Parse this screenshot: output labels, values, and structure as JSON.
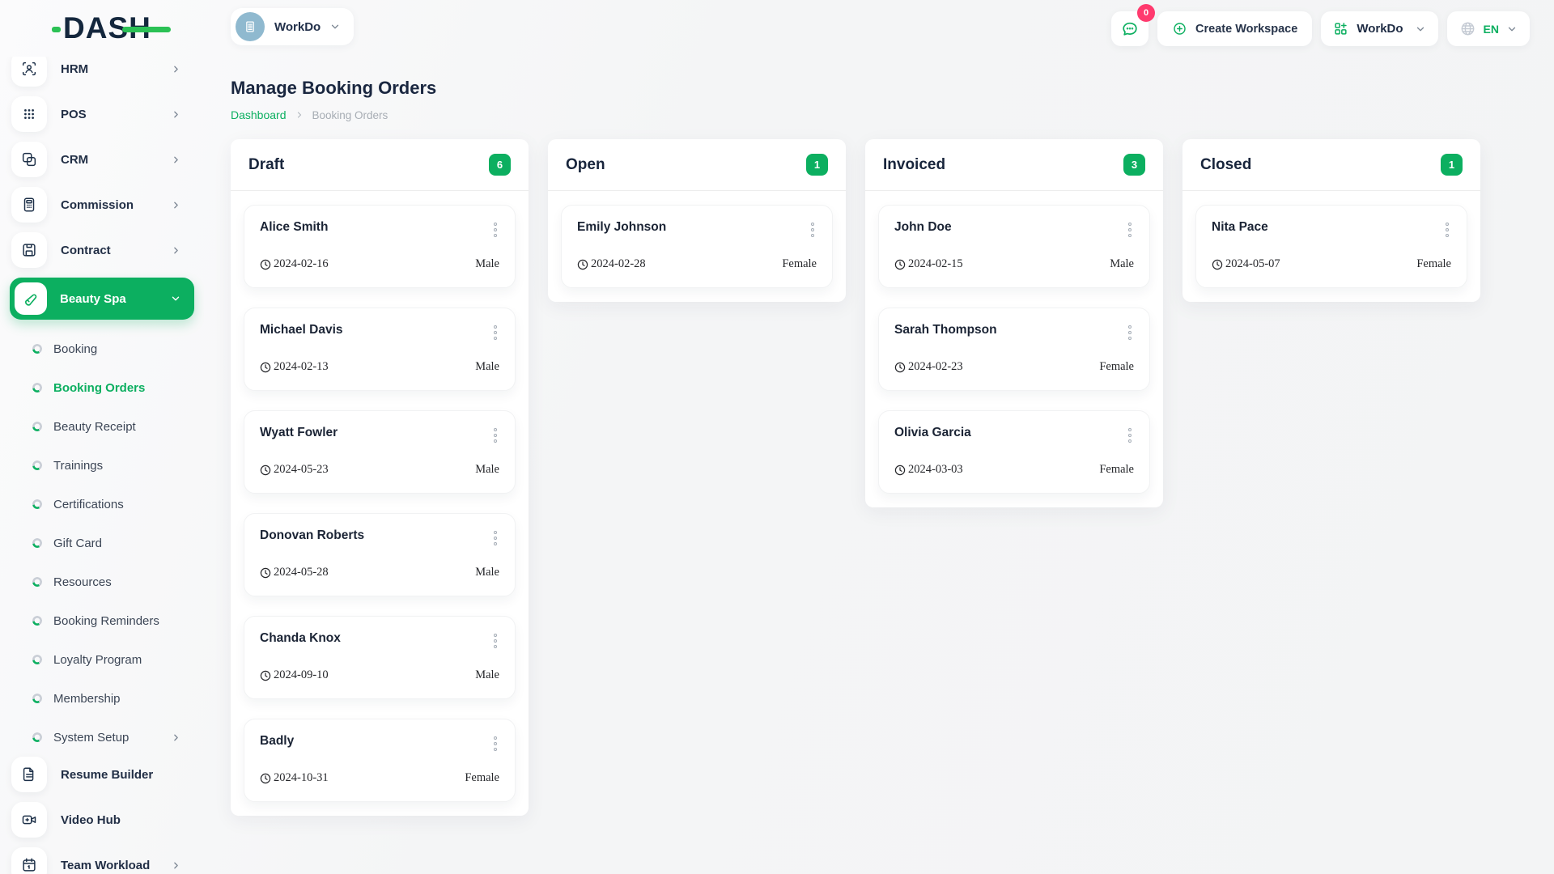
{
  "brand": {
    "logo_text": "DASH"
  },
  "header": {
    "workspace": {
      "label": "WorkDo",
      "avatar_icon": "building-icon"
    },
    "actions": {
      "messages_badge": "0",
      "create_workspace_label": "Create Workspace",
      "workspace_dropdown_label": "WorkDo",
      "language_label": "EN"
    }
  },
  "sidebar": {
    "items": [
      {
        "kind": "main",
        "label": "HRM",
        "icon": "hrm-icon",
        "chevron": "right"
      },
      {
        "kind": "main",
        "label": "POS",
        "icon": "pos-icon",
        "chevron": "right"
      },
      {
        "kind": "main",
        "label": "CRM",
        "icon": "crm-icon",
        "chevron": "right"
      },
      {
        "kind": "main",
        "label": "Commission",
        "icon": "commission-icon",
        "chevron": "right"
      },
      {
        "kind": "main",
        "label": "Contract",
        "icon": "contract-icon",
        "chevron": "right"
      },
      {
        "kind": "main",
        "label": "Beauty Spa",
        "icon": "beauty-spa-icon",
        "chevron": "down",
        "active": true
      },
      {
        "kind": "sub",
        "label": "Booking"
      },
      {
        "kind": "sub",
        "label": "Booking Orders",
        "active": true
      },
      {
        "kind": "sub",
        "label": "Beauty Receipt"
      },
      {
        "kind": "sub",
        "label": "Trainings"
      },
      {
        "kind": "sub",
        "label": "Certifications"
      },
      {
        "kind": "sub",
        "label": "Gift Card"
      },
      {
        "kind": "sub",
        "label": "Resources"
      },
      {
        "kind": "sub",
        "label": "Booking Reminders"
      },
      {
        "kind": "sub",
        "label": "Loyalty Program"
      },
      {
        "kind": "sub",
        "label": "Membership"
      },
      {
        "kind": "sub",
        "label": "System Setup",
        "chevron": "right"
      },
      {
        "kind": "main",
        "label": "Resume Builder",
        "icon": "resume-builder-icon"
      },
      {
        "kind": "main",
        "label": "Video Hub",
        "icon": "video-hub-icon"
      },
      {
        "kind": "main",
        "label": "Team Workload",
        "icon": "team-workload-icon",
        "chevron": "right"
      }
    ]
  },
  "page": {
    "title": "Manage Booking Orders",
    "breadcrumb": [
      "Dashboard",
      "Booking Orders"
    ]
  },
  "board": {
    "columns": [
      {
        "title": "Draft",
        "count": "6",
        "cards": [
          {
            "name": "Alice Smith",
            "date": "2024-02-16",
            "gender": "Male"
          },
          {
            "name": "Michael Davis",
            "date": "2024-02-13",
            "gender": "Male"
          },
          {
            "name": "Wyatt Fowler",
            "date": "2024-05-23",
            "gender": "Male"
          },
          {
            "name": "Donovan Roberts",
            "date": "2024-05-28",
            "gender": "Male"
          },
          {
            "name": "Chanda Knox",
            "date": "2024-09-10",
            "gender": "Male"
          },
          {
            "name": "Badly",
            "date": "2024-10-31",
            "gender": "Female"
          }
        ]
      },
      {
        "title": "Open",
        "count": "1",
        "cards": [
          {
            "name": "Emily Johnson",
            "date": "2024-02-28",
            "gender": "Female"
          }
        ]
      },
      {
        "title": "Invoiced",
        "count": "3",
        "cards": [
          {
            "name": "John Doe",
            "date": "2024-02-15",
            "gender": "Male"
          },
          {
            "name": "Sarah Thompson",
            "date": "2024-02-23",
            "gender": "Female"
          },
          {
            "name": "Olivia Garcia",
            "date": "2024-03-03",
            "gender": "Female"
          }
        ]
      },
      {
        "title": "Closed",
        "count": "1",
        "cards": [
          {
            "name": "Nita Pace",
            "date": "2024-05-07",
            "gender": "Female"
          }
        ]
      }
    ]
  },
  "colors": {
    "accent_green": "#0caf60",
    "logo_green": "#2bc155",
    "logo_navy": "#14273d",
    "badge_pink": "#ff3a6e",
    "workspace_avatar_blue": "#8fb9cf"
  }
}
